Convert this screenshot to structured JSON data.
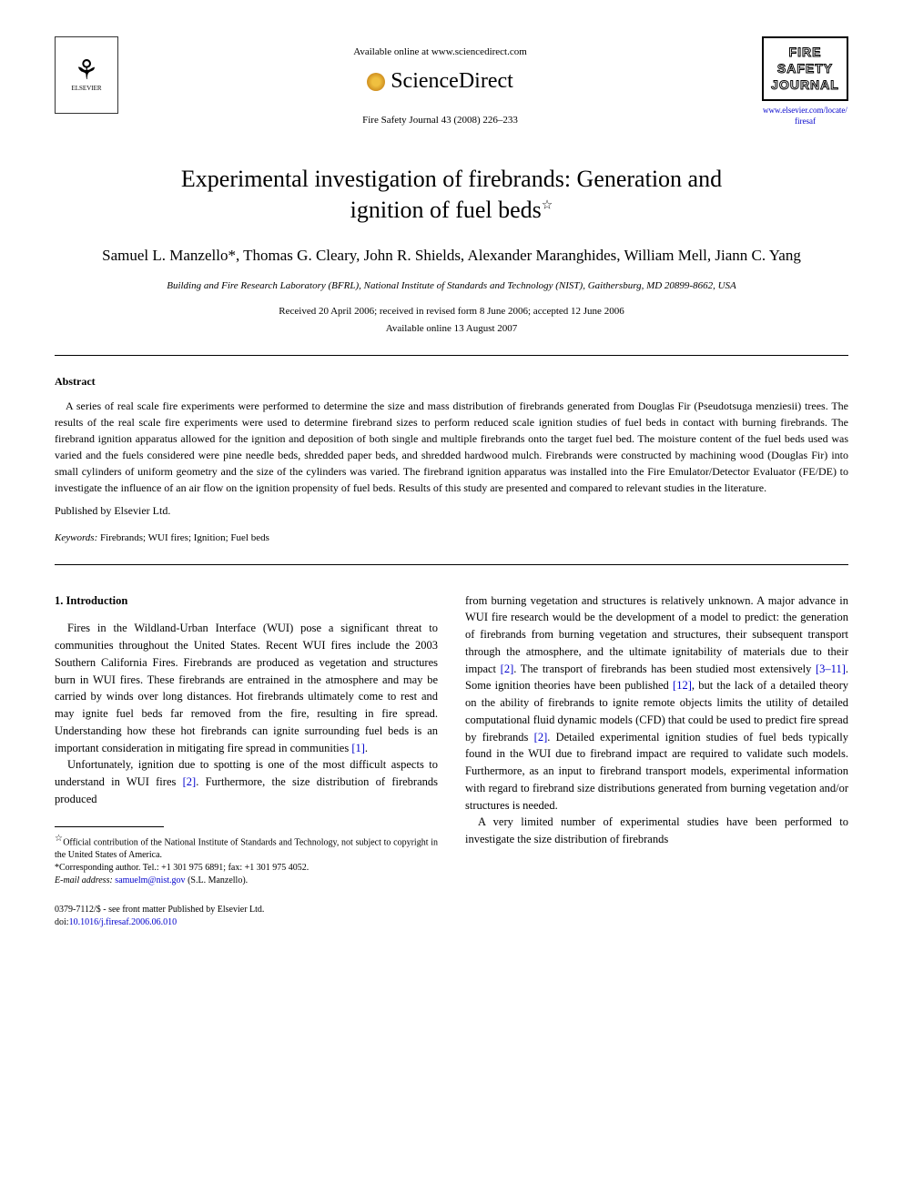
{
  "header": {
    "available_text": "Available online at www.sciencedirect.com",
    "sciencedirect": "ScienceDirect",
    "journal_ref": "Fire Safety Journal 43 (2008) 226–233",
    "elsevier_label": "ELSEVIER",
    "journal_logo_line1": "FIRE",
    "journal_logo_line2": "SAFETY",
    "journal_logo_line3": "JOURNAL",
    "journal_url": "www.elsevier.com/locate/firesaf"
  },
  "title": {
    "line1": "Experimental investigation of firebrands: Generation and",
    "line2": "ignition of fuel beds",
    "star": "☆"
  },
  "authors": "Samuel L. Manzello*, Thomas G. Cleary, John R. Shields, Alexander Maranghides, William Mell, Jiann C. Yang",
  "affiliation": "Building and Fire Research Laboratory (BFRL), National Institute of Standards and Technology (NIST), Gaithersburg, MD 20899-8662, USA",
  "dates": {
    "received": "Received 20 April 2006; received in revised form 8 June 2006; accepted 12 June 2006",
    "online": "Available online 13 August 2007"
  },
  "abstract": {
    "label": "Abstract",
    "text": "A series of real scale fire experiments were performed to determine the size and mass distribution of firebrands generated from Douglas Fir (Pseudotsuga menziesii) trees. The results of the real scale fire experiments were used to determine firebrand sizes to perform reduced scale ignition studies of fuel beds in contact with burning firebrands. The firebrand ignition apparatus allowed for the ignition and deposition of both single and multiple firebrands onto the target fuel bed. The moisture content of the fuel beds used was varied and the fuels considered were pine needle beds, shredded paper beds, and shredded hardwood mulch. Firebrands were constructed by machining wood (Douglas Fir) into small cylinders of uniform geometry and the size of the cylinders was varied. The firebrand ignition apparatus was installed into the Fire Emulator/Detector Evaluator (FE/DE) to investigate the influence of an air flow on the ignition propensity of fuel beds. Results of this study are presented and compared to relevant studies in the literature.",
    "published": "Published by Elsevier Ltd."
  },
  "keywords": {
    "label": "Keywords:",
    "text": "Firebrands; WUI fires; Ignition; Fuel beds"
  },
  "section1": {
    "heading": "1. Introduction",
    "p1": "Fires in the Wildland-Urban Interface (WUI) pose a significant threat to communities throughout the United States. Recent WUI fires include the 2003 Southern California Fires. Firebrands are produced as vegetation and structures burn in WUI fires. These firebrands are entrained in the atmosphere and may be carried by winds over long distances. Hot firebrands ultimately come to rest and may ignite fuel beds far removed from the fire, resulting in fire spread. Understanding how these hot firebrands can ignite surrounding fuel beds is an important consideration in mitigating fire spread in communities ",
    "ref1": "[1]",
    "p1_end": ".",
    "p2": "Unfortunately, ignition due to spotting is one of the most difficult aspects to understand in WUI fires ",
    "ref2": "[2]",
    "p2_end": ". Furthermore, the size distribution of firebrands produced",
    "p3_a": "from burning vegetation and structures is relatively unknown. A major advance in WUI fire research would be the development of a model to predict: the generation of firebrands from burning vegetation and structures, their subsequent transport through the atmosphere, and the ultimate ignitability of materials due to their impact ",
    "ref2b": "[2]",
    "p3_b": ". The transport of firebrands has been studied most extensively ",
    "ref3_11": "[3–11]",
    "p3_c": ". Some ignition theories have been published ",
    "ref12": "[12]",
    "p3_d": ", but the lack of a detailed theory on the ability of firebrands to ignite remote objects limits the utility of detailed computational fluid dynamic models (CFD) that could be used to predict fire spread by firebrands ",
    "ref2c": "[2]",
    "p3_e": ". Detailed experimental ignition studies of fuel beds typically found in the WUI due to firebrand impact are required to validate such models. Furthermore, as an input to firebrand transport models, experimental information with regard to firebrand size distributions generated from burning vegetation and/or structures is needed.",
    "p4": "A very limited number of experimental studies have been performed to investigate the size distribution of firebrands"
  },
  "footnotes": {
    "fn1_star": "☆",
    "fn1": "Official contribution of the National Institute of Standards and Technology, not subject to copyright in the United States of America.",
    "fn2_star": "*",
    "fn2": "Corresponding author. Tel.: +1 301 975 6891; fax: +1 301 975 4052.",
    "email_label": "E-mail address:",
    "email": "samuelm@nist.gov",
    "email_name": "(S.L. Manzello)."
  },
  "bottom": {
    "line1": "0379-7112/$ - see front matter Published by Elsevier Ltd.",
    "doi_label": "doi:",
    "doi": "10.1016/j.firesaf.2006.06.010"
  },
  "colors": {
    "text": "#000000",
    "link": "#0000cc",
    "background": "#ffffff"
  }
}
